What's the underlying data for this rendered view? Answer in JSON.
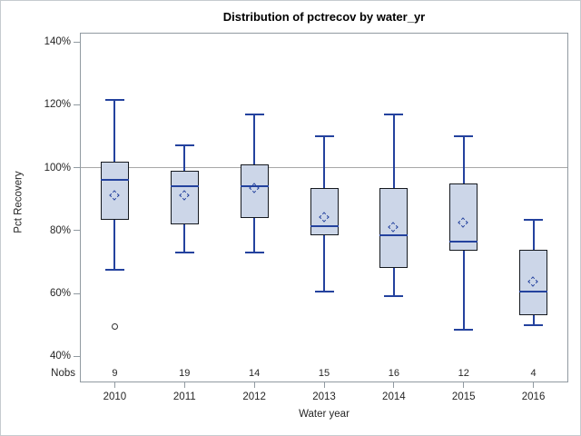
{
  "chart_data": {
    "type": "boxplot",
    "title": "Distribution of pctrecov by water_yr",
    "xlabel": "Water year",
    "ylabel": "Pct Recovery",
    "nobs_row_label": "Nobs",
    "y_axis": {
      "min": 40,
      "max": 140,
      "ticks": [
        40,
        60,
        80,
        100,
        120,
        140
      ],
      "tick_suffix": "%"
    },
    "reference_line_y": 100,
    "grid": false,
    "legend": false,
    "categories": [
      "2010",
      "2011",
      "2012",
      "2013",
      "2014",
      "2015",
      "2016"
    ],
    "series": [
      {
        "category": "2010",
        "nobs": 9,
        "whisker_low": 67.5,
        "q1": 83.5,
        "median": 96,
        "q3": 102,
        "whisker_high": 121.5,
        "mean": 91,
        "outliers": [
          49.5
        ]
      },
      {
        "category": "2011",
        "nobs": 19,
        "whisker_low": 73,
        "q1": 82,
        "median": 94,
        "q3": 99,
        "whisker_high": 107,
        "mean": 91,
        "outliers": []
      },
      {
        "category": "2012",
        "nobs": 14,
        "whisker_low": 73,
        "q1": 84,
        "median": 94,
        "q3": 101,
        "whisker_high": 117,
        "mean": 93.5,
        "outliers": []
      },
      {
        "category": "2013",
        "nobs": 15,
        "whisker_low": 60.5,
        "q1": 78.5,
        "median": 81.5,
        "q3": 93.5,
        "whisker_high": 110,
        "mean": 84,
        "outliers": []
      },
      {
        "category": "2014",
        "nobs": 16,
        "whisker_low": 59,
        "q1": 68,
        "median": 78.5,
        "q3": 93.5,
        "whisker_high": 117,
        "mean": 81,
        "outliers": []
      },
      {
        "category": "2015",
        "nobs": 12,
        "whisker_low": 48.5,
        "q1": 73.5,
        "median": 76.5,
        "q3": 95,
        "whisker_high": 110,
        "mean": 82.5,
        "outliers": []
      },
      {
        "category": "2016",
        "nobs": 4,
        "whisker_low": 50,
        "q1": 53,
        "median": 60.5,
        "q3": 74,
        "whisker_high": 83.5,
        "mean": 63.5,
        "outliers": []
      }
    ]
  },
  "colors": {
    "box_fill": "#ccd6e8",
    "box_border": "#15191f",
    "whisker": "#24429e",
    "median": "#24429e",
    "mean_marker": "#24429e",
    "outlier_stroke": "#333333",
    "reference_line": "#a8a8a8",
    "wall_border": "#919aa1",
    "figure_border": "#c6cbcf",
    "text": "#262626",
    "title_text": "#000000"
  }
}
